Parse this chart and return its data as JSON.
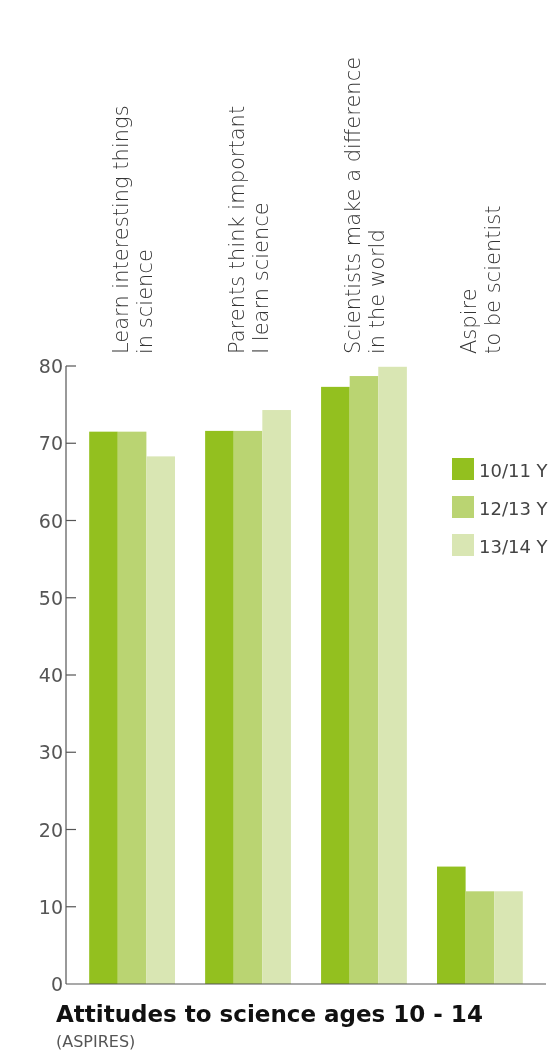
{
  "chart_data": {
    "type": "bar",
    "title": "Attitudes to science ages 10 - 14",
    "subtitle": "(ASPIRES)",
    "categories": [
      "Learn interesting things\nin science",
      "Parents think important\nI learn science",
      "Scientists make a difference\nin the world",
      "Aspire\nto be scientist"
    ],
    "series": [
      {
        "name": "10/11 Y",
        "color": "#93c01f",
        "values": [
          71.5,
          71.6,
          77.3,
          15.2
        ]
      },
      {
        "name": "12/13 Y",
        "color": "#bad472",
        "values": [
          71.5,
          71.6,
          78.7,
          12.0
        ]
      },
      {
        "name": "13/14 Y",
        "color": "#d9e6b3",
        "values": [
          68.3,
          74.3,
          79.9,
          12.0
        ]
      }
    ],
    "ylim": [
      0,
      80
    ],
    "yticks": [
      0,
      10,
      20,
      30,
      40,
      50,
      60,
      70,
      80
    ],
    "legend": "right",
    "grid": false
  }
}
